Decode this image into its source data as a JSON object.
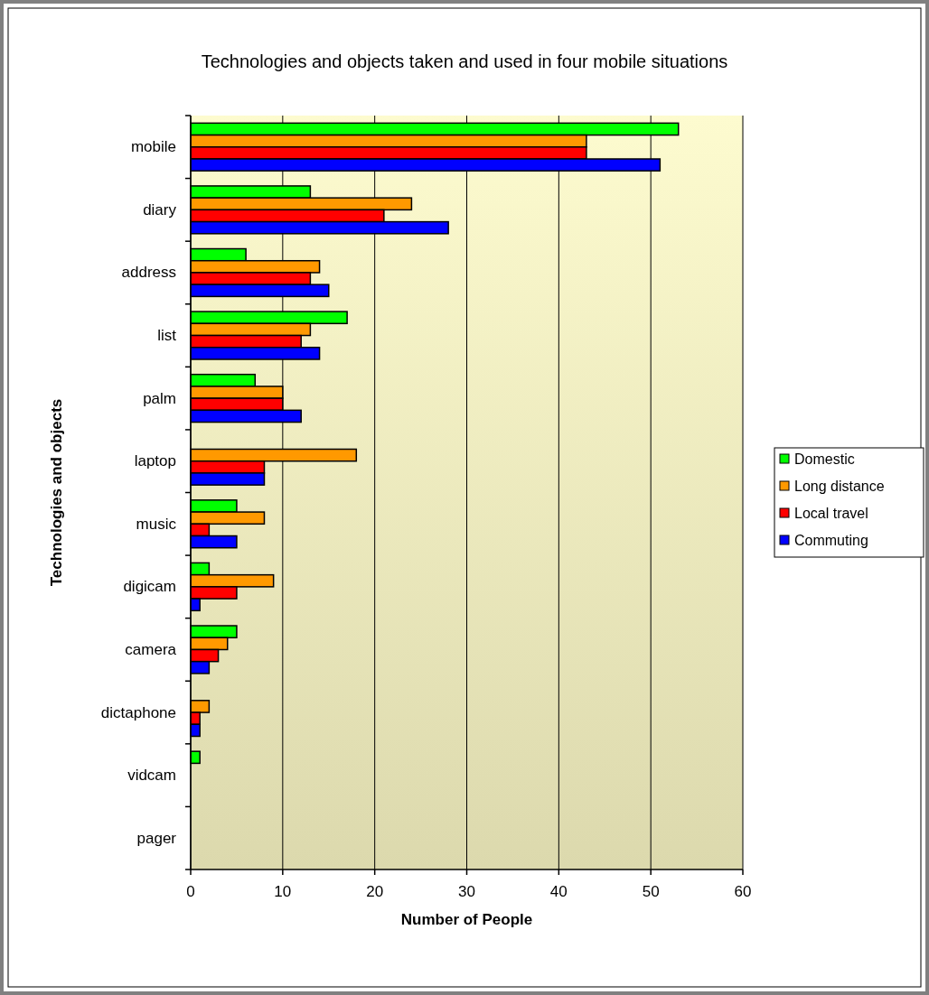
{
  "chart_data": {
    "type": "bar",
    "orientation": "horizontal",
    "title": "Technologies and objects taken and used in four mobile situations",
    "xlabel": "Number of People",
    "ylabel": "Technologies and objects",
    "categories": [
      "mobile",
      "diary",
      "address",
      "list",
      "palm",
      "laptop",
      "music",
      "digicam",
      "camera",
      "dictaphone",
      "vidcam",
      "pager"
    ],
    "series": [
      {
        "name": "Domestic",
        "color": "#00ff00",
        "values": [
          53,
          13,
          6,
          17,
          7,
          0,
          5,
          2,
          5,
          0,
          1,
          0
        ]
      },
      {
        "name": "Long distance",
        "color": "#ff9900",
        "values": [
          43,
          24,
          14,
          13,
          10,
          18,
          8,
          9,
          4,
          2,
          0,
          0
        ]
      },
      {
        "name": "Local travel",
        "color": "#ff0000",
        "values": [
          43,
          21,
          13,
          12,
          10,
          8,
          2,
          5,
          3,
          1,
          0,
          0
        ]
      },
      {
        "name": "Commuting",
        "color": "#0000ff",
        "values": [
          51,
          28,
          15,
          14,
          12,
          8,
          5,
          1,
          2,
          1,
          0,
          0
        ]
      }
    ],
    "xlim": [
      0,
      60
    ],
    "xticks": [
      0,
      10,
      20,
      30,
      40,
      50,
      60
    ],
    "grid": "x",
    "legend": "right"
  }
}
